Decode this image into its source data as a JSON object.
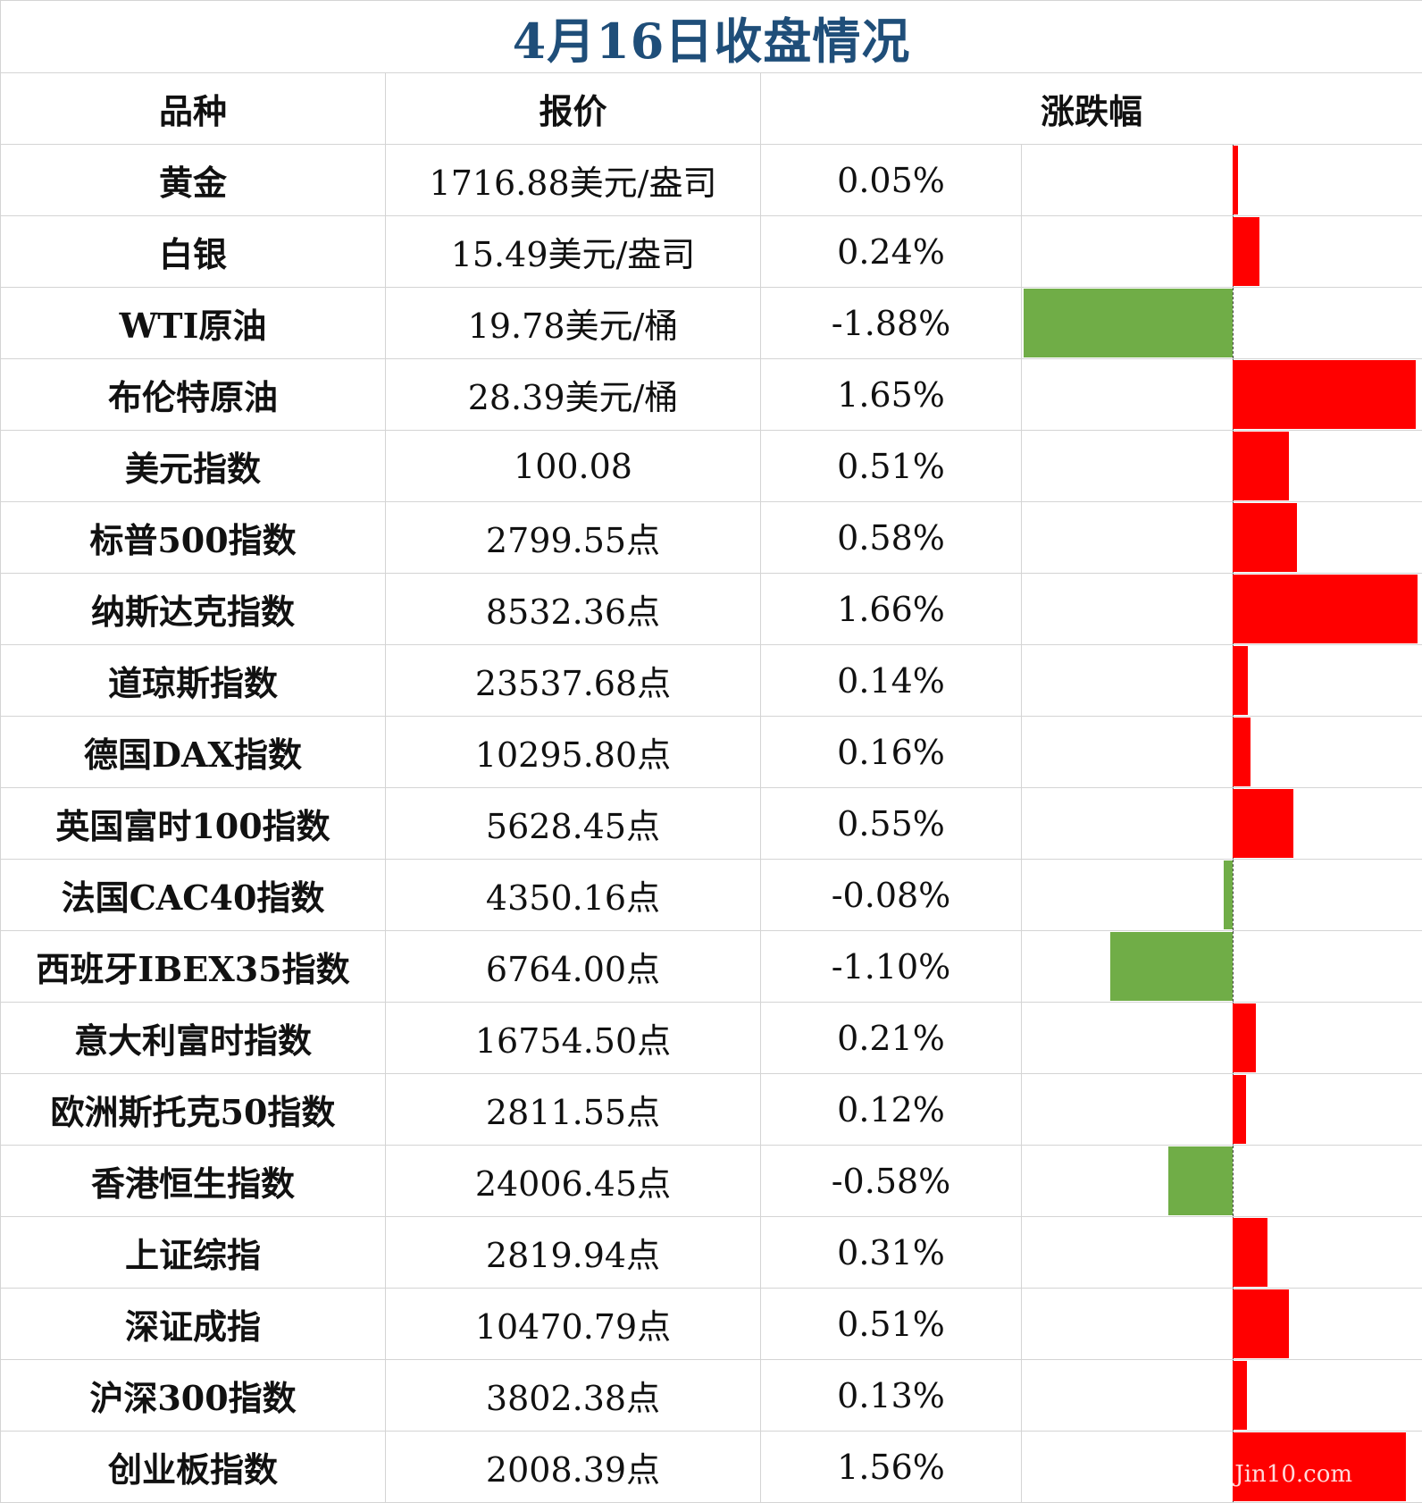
{
  "title": "4月16日收盘情况",
  "headers": {
    "name": "品种",
    "price": "报价",
    "change": "涨跌幅"
  },
  "colors": {
    "positive": "#ff0000",
    "negative": "#70ad47",
    "title": "#1f4e79"
  },
  "watermark": "Jin10.com",
  "chart_data": {
    "type": "bar",
    "orientation": "horizontal",
    "categories": [
      "黄金",
      "白银",
      "WTI原油",
      "布伦特原油",
      "美元指数",
      "标普500指数",
      "纳斯达克指数",
      "道琼斯指数",
      "德国DAX指数",
      "英国富时100指数",
      "法国CAC40指数",
      "西班牙IBEX35指数",
      "意大利富时指数",
      "欧洲斯托克50指数",
      "香港恒生指数",
      "上证综指",
      "深证成指",
      "沪深300指数",
      "创业板指数"
    ],
    "values": [
      0.05,
      0.24,
      -1.88,
      1.65,
      0.51,
      0.58,
      1.66,
      0.14,
      0.16,
      0.55,
      -0.08,
      -1.1,
      0.21,
      0.12,
      -0.58,
      0.31,
      0.51,
      0.13,
      1.56
    ],
    "xlim": [
      -1.88,
      1.66
    ]
  },
  "rows": [
    {
      "name": "黄金",
      "price": "1716.88美元/盎司",
      "change": "0.05%"
    },
    {
      "name": "白银",
      "price": "15.49美元/盎司",
      "change": "0.24%"
    },
    {
      "name": "WTI原油",
      "price": "19.78美元/桶",
      "change": "-1.88%"
    },
    {
      "name": "布伦特原油",
      "price": "28.39美元/桶",
      "change": "1.65%"
    },
    {
      "name": "美元指数",
      "price": "100.08",
      "change": "0.51%"
    },
    {
      "name": "标普500指数",
      "price": "2799.55点",
      "change": "0.58%"
    },
    {
      "name": "纳斯达克指数",
      "price": "8532.36点",
      "change": "1.66%"
    },
    {
      "name": "道琼斯指数",
      "price": "23537.68点",
      "change": "0.14%"
    },
    {
      "name": "德国DAX指数",
      "price": "10295.80点",
      "change": "0.16%"
    },
    {
      "name": "英国富时100指数",
      "price": "5628.45点",
      "change": "0.55%"
    },
    {
      "name": "法国CAC40指数",
      "price": "4350.16点",
      "change": "-0.08%"
    },
    {
      "name": "西班牙IBEX35指数",
      "price": "6764.00点",
      "change": "-1.10%"
    },
    {
      "name": "意大利富时指数",
      "price": "16754.50点",
      "change": "0.21%"
    },
    {
      "name": "欧洲斯托克50指数",
      "price": "2811.55点",
      "change": "0.12%"
    },
    {
      "name": "香港恒生指数",
      "price": "24006.45点",
      "change": "-0.58%"
    },
    {
      "name": "上证综指",
      "price": "2819.94点",
      "change": "0.31%"
    },
    {
      "name": "深证成指",
      "price": "10470.79点",
      "change": "0.51%"
    },
    {
      "name": "沪深300指数",
      "price": "3802.38点",
      "change": "0.13%"
    },
    {
      "name": "创业板指数",
      "price": "2008.39点",
      "change": "1.56%"
    }
  ]
}
